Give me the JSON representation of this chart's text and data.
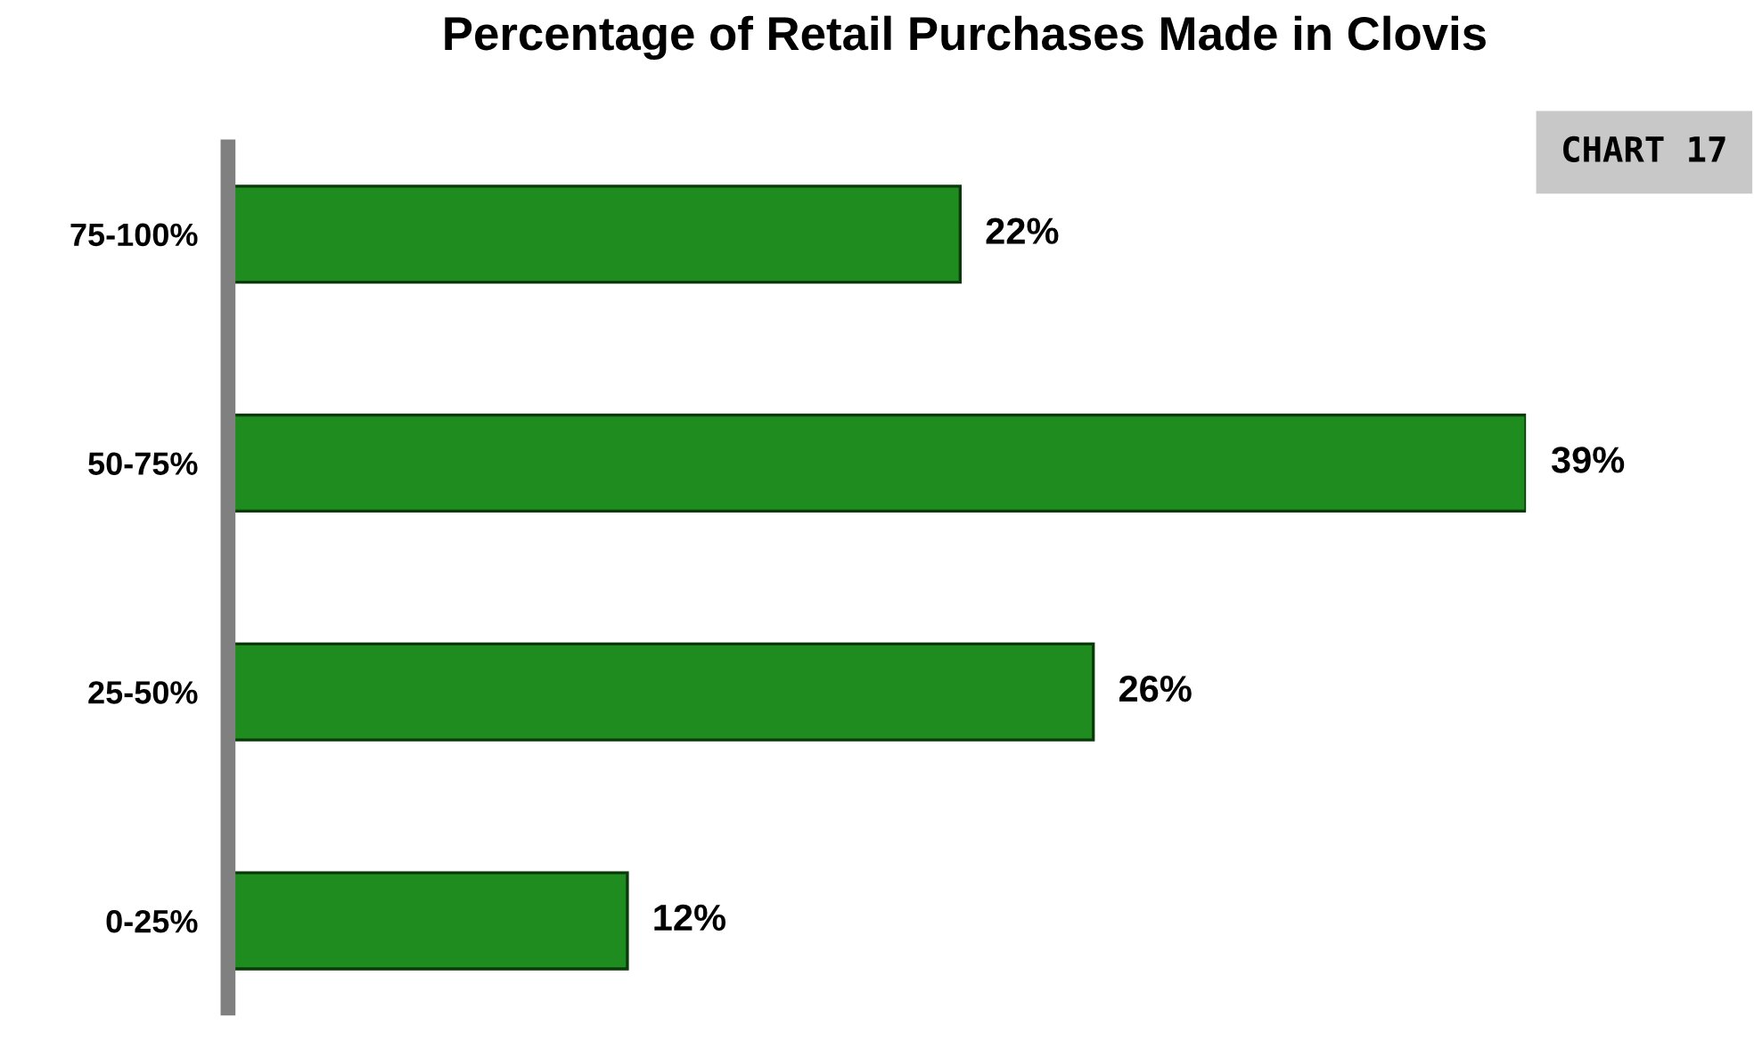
{
  "chart_data": {
    "type": "bar",
    "orientation": "horizontal",
    "title": "Percentage of Retail Purchases Made in Clovis",
    "categories": [
      "75-100%",
      "50-75%",
      "25-50%",
      "0-25%"
    ],
    "values": [
      22,
      39,
      26,
      12
    ],
    "value_labels": [
      "22%",
      "39%",
      "26%",
      "12%"
    ],
    "color": "#1e8c1e",
    "grid": false,
    "legend": false,
    "annotations": [
      "CHART 17"
    ]
  }
}
